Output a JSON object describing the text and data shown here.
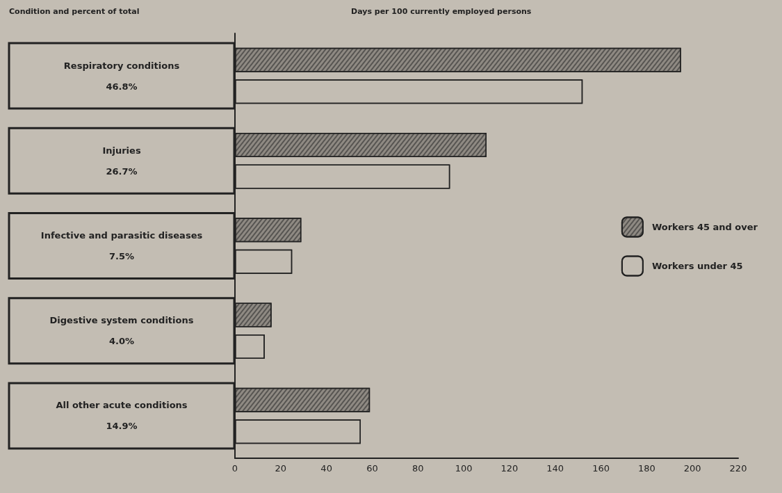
{
  "chart_data": {
    "type": "bar",
    "orientation": "horizontal",
    "ylabel": "Condition and percent of total",
    "xlabel": "Days per 100 currently employed persons",
    "categories": [
      "Respiratory conditions\n46.8%",
      "Injuries\n26.7%",
      "Infective and parasitic diseases\n7.5%",
      "Digestive system conditions\n4.0%",
      "All other acute conditions\n14.9%"
    ],
    "series": [
      {
        "name": "Workers 45 and over",
        "color": "#8f8a83",
        "values": [
          195,
          110,
          29,
          16,
          59
        ]
      },
      {
        "name": "Workers under 45",
        "color": "#c3bdb3",
        "values": [
          152,
          94,
          25,
          13,
          55
        ]
      }
    ],
    "xlim": [
      0,
      220
    ],
    "xticks": [
      0,
      20,
      40,
      60,
      80,
      100,
      120,
      140,
      160,
      180,
      200,
      220
    ],
    "grid": false,
    "legend": "right"
  }
}
